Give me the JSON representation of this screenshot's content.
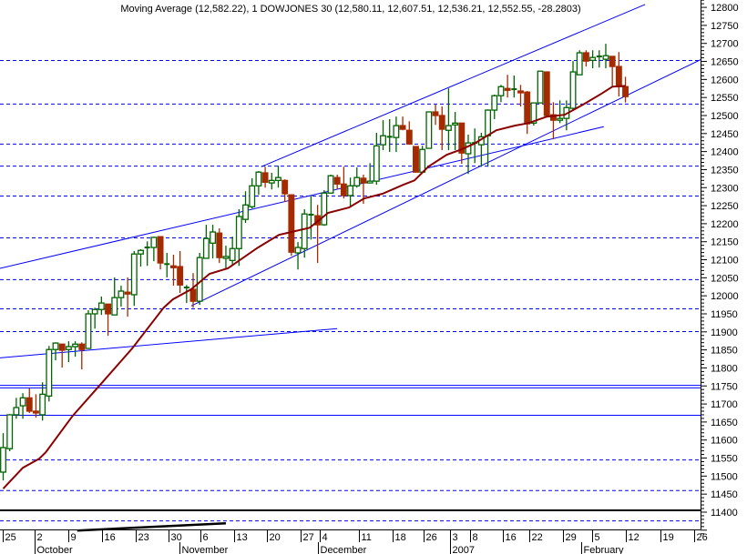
{
  "chart_data": {
    "type": "candlestick",
    "title": "Moving Average (12,582.22), 1 DOWJONES 30 (12,580.11, 12,607.51, 12,536.21, 12,552.55, -28.2803)",
    "ylim": [
      11336,
      12820
    ],
    "y_ticks": [
      11400,
      11450,
      11500,
      11550,
      11600,
      11650,
      11700,
      11750,
      11800,
      11850,
      11900,
      11950,
      12000,
      12050,
      12100,
      12150,
      12200,
      12250,
      12300,
      12350,
      12400,
      12450,
      12500,
      12550,
      12600,
      12650,
      12700,
      12750,
      12800
    ],
    "x_ticks": [
      {
        "label": "25",
        "pos": -0.1
      },
      {
        "label": "2",
        "pos": 4.8
      },
      {
        "label": "9",
        "pos": 10
      },
      {
        "label": "16",
        "pos": 15.1
      },
      {
        "label": "23",
        "pos": 20.2
      },
      {
        "label": "30",
        "pos": 25.2
      },
      {
        "label": "6",
        "pos": 30.1
      },
      {
        "label": "13",
        "pos": 35.3
      },
      {
        "label": "20",
        "pos": 40.2
      },
      {
        "label": "27",
        "pos": 45.4
      },
      {
        "label": "4",
        "pos": 48.3
      },
      {
        "label": "11",
        "pos": 54.3
      },
      {
        "label": "18",
        "pos": 59.5
      },
      {
        "label": "26",
        "pos": 64.2
      },
      {
        "label": "3",
        "pos": 68.2
      },
      {
        "label": "8",
        "pos": 71.3
      },
      {
        "label": "16",
        "pos": 76.3
      },
      {
        "label": "22",
        "pos": 80.3
      },
      {
        "label": "29",
        "pos": 85.5
      },
      {
        "label": "5",
        "pos": 89.9
      },
      {
        "label": "12",
        "pos": 95
      },
      {
        "label": "19",
        "pos": 100.3
      },
      {
        "label": "26",
        "pos": 105.5
      }
    ],
    "months": [
      {
        "label": "October",
        "pos": 4.8
      },
      {
        "label": "November",
        "pos": 26.9
      },
      {
        "label": "December",
        "pos": 48
      },
      {
        "label": "2007",
        "pos": 68.2
      },
      {
        "label": "February",
        "pos": 88.3
      }
    ],
    "candles": [
      [
        11511,
        11619,
        11488,
        11579
      ],
      [
        11576,
        11672,
        11569,
        11670
      ],
      [
        11670,
        11717,
        11659,
        11690
      ],
      [
        11695,
        11730,
        11659,
        11717
      ],
      [
        11717,
        11743,
        11675,
        11680
      ],
      [
        11680,
        11727,
        11662,
        11675
      ],
      [
        11670,
        11760,
        11654,
        11727
      ],
      [
        11722,
        11861,
        11707,
        11851
      ],
      [
        11851,
        11871,
        11821,
        11869
      ],
      [
        11866,
        11866,
        11801,
        11849
      ],
      [
        11851,
        11874,
        11816,
        11859
      ],
      [
        11859,
        11874,
        11831,
        11866
      ],
      [
        11866,
        11871,
        11796,
        11851
      ],
      [
        11854,
        11960,
        11854,
        11950
      ],
      [
        11950,
        11967,
        11909,
        11962
      ],
      [
        11962,
        11998,
        11947,
        11980
      ],
      [
        11977,
        11977,
        11889,
        11950
      ],
      [
        11947,
        12051,
        11947,
        11995
      ],
      [
        11995,
        12028,
        11970,
        12013
      ],
      [
        12010,
        12051,
        11942,
        12005
      ],
      [
        12003,
        12124,
        11972,
        12116
      ],
      [
        12116,
        12129,
        12081,
        12126
      ],
      [
        12131,
        12151,
        12083,
        12134
      ],
      [
        12134,
        12164,
        12096,
        12162
      ],
      [
        12164,
        12164,
        12073,
        12091
      ],
      [
        12088,
        12119,
        12051,
        12088
      ],
      [
        12083,
        12114,
        12028,
        12078
      ],
      [
        12081,
        12124,
        12008,
        12030
      ],
      [
        12023,
        12030,
        11980,
        12023
      ],
      [
        12018,
        12063,
        11967,
        11985
      ],
      [
        11985,
        12119,
        11975,
        12106
      ],
      [
        12104,
        12197,
        12104,
        12159
      ],
      [
        12146,
        12197,
        12104,
        12177
      ],
      [
        12174,
        12187,
        12091,
        12106
      ],
      [
        12104,
        12139,
        12073,
        12109
      ],
      [
        12098,
        12164,
        12086,
        12131
      ],
      [
        12131,
        12240,
        12083,
        12220
      ],
      [
        12212,
        12290,
        12202,
        12252
      ],
      [
        12247,
        12326,
        12242,
        12305
      ],
      [
        12305,
        12346,
        12280,
        12343
      ],
      [
        12341,
        12358,
        12300,
        12315
      ],
      [
        12313,
        12341,
        12295,
        12320
      ],
      [
        12320,
        12361,
        12300,
        12328
      ],
      [
        12320,
        12323,
        12260,
        12283
      ],
      [
        12280,
        12280,
        12111,
        12121
      ],
      [
        12119,
        12149,
        12073,
        12134
      ],
      [
        12131,
        12240,
        12106,
        12227
      ],
      [
        12225,
        12278,
        12156,
        12225
      ],
      [
        12222,
        12252,
        12091,
        12197
      ],
      [
        12197,
        12293,
        12194,
        12285
      ],
      [
        12285,
        12336,
        12283,
        12333
      ],
      [
        12328,
        12336,
        12295,
        12310
      ],
      [
        12310,
        12358,
        12270,
        12278
      ],
      [
        12278,
        12328,
        12245,
        12305
      ],
      [
        12305,
        12356,
        12300,
        12328
      ],
      [
        12326,
        12336,
        12255,
        12313
      ],
      [
        12313,
        12368,
        12313,
        12318
      ],
      [
        12318,
        12452,
        12308,
        12416
      ],
      [
        12419,
        12487,
        12404,
        12444
      ],
      [
        12441,
        12490,
        12399,
        12441
      ],
      [
        12439,
        12497,
        12399,
        12472
      ],
      [
        12472,
        12497,
        12459,
        12462
      ],
      [
        12459,
        12484,
        12419,
        12421
      ],
      [
        12414,
        12414,
        12343,
        12343
      ],
      [
        12343,
        12416,
        12341,
        12406
      ],
      [
        12409,
        12510,
        12409,
        12510
      ],
      [
        12510,
        12530,
        12474,
        12500
      ],
      [
        12500,
        12525,
        12404,
        12462
      ],
      [
        12459,
        12575,
        12404,
        12472
      ],
      [
        12474,
        12510,
        12404,
        12479
      ],
      [
        12479,
        12479,
        12366,
        12396
      ],
      [
        12394,
        12447,
        12338,
        12424
      ],
      [
        12424,
        12464,
        12368,
        12424
      ],
      [
        12419,
        12452,
        12358,
        12441
      ],
      [
        12444,
        12517,
        12358,
        12515
      ],
      [
        12515,
        12558,
        12490,
        12555
      ],
      [
        12555,
        12585,
        12537,
        12580
      ],
      [
        12575,
        12613,
        12550,
        12570
      ],
      [
        12573,
        12611,
        12550,
        12573
      ],
      [
        12568,
        12585,
        12525,
        12563
      ],
      [
        12565,
        12568,
        12449,
        12477
      ],
      [
        12479,
        12535,
        12472,
        12535
      ],
      [
        12535,
        12623,
        12535,
        12623
      ],
      [
        12621,
        12621,
        12500,
        12500
      ],
      [
        12502,
        12537,
        12434,
        12487
      ],
      [
        12487,
        12542,
        12479,
        12492
      ],
      [
        12492,
        12542,
        12459,
        12522
      ],
      [
        12520,
        12651,
        12515,
        12621
      ],
      [
        12613,
        12681,
        12613,
        12674
      ],
      [
        12674,
        12681,
        12636,
        12651
      ],
      [
        12653,
        12681,
        12631,
        12661
      ],
      [
        12661,
        12681,
        12633,
        12664
      ],
      [
        12656,
        12699,
        12631,
        12666
      ],
      [
        12664,
        12664,
        12580,
        12636
      ],
      [
        12636,
        12676,
        12553,
        12580
      ],
      [
        12580.11,
        12607.51,
        12536.21,
        12552.55
      ]
    ],
    "moving_average": {
      "name": "Moving Average",
      "last_value": 12582.22,
      "points": [
        [
          0,
          11465
        ],
        [
          3,
          11523
        ],
        [
          5.5,
          11548
        ],
        [
          6.5,
          11566
        ],
        [
          10.6,
          11667
        ],
        [
          14.8,
          11753
        ],
        [
          19.7,
          11854
        ],
        [
          24.5,
          11967
        ],
        [
          25.9,
          11990
        ],
        [
          28.7,
          12018
        ],
        [
          31.5,
          12061
        ],
        [
          34.3,
          12076
        ],
        [
          38.9,
          12134
        ],
        [
          42.1,
          12169
        ],
        [
          44,
          12177
        ],
        [
          46.8,
          12189
        ],
        [
          49.6,
          12230
        ],
        [
          52.8,
          12245
        ],
        [
          55.1,
          12270
        ],
        [
          57.9,
          12283
        ],
        [
          61.1,
          12308
        ],
        [
          62.8,
          12320
        ],
        [
          64.9,
          12358
        ],
        [
          67.7,
          12391
        ],
        [
          69.7,
          12404
        ],
        [
          71.8,
          12421
        ],
        [
          75.3,
          12459
        ],
        [
          78.1,
          12472
        ],
        [
          80.2,
          12479
        ],
        [
          83,
          12497
        ],
        [
          85.7,
          12502
        ],
        [
          88.5,
          12530
        ],
        [
          91.3,
          12560
        ],
        [
          93,
          12580
        ],
        [
          95,
          12582.22
        ]
      ]
    },
    "horizontal_lines": {
      "dashed": [
        12654,
        12533,
        12422,
        12361,
        12278,
        12162,
        12046,
        11965,
        11902,
        11546,
        11461,
        11377
      ],
      "solid_blue": [
        11753,
        11746,
        11670
      ],
      "solid_black": [
        11405
      ]
    },
    "trend_lines": [
      {
        "name": "upper-channel",
        "from": [
          39.4,
          12358
        ],
        "to": [
          98,
          12808
        ],
        "color": "#0000ff"
      },
      {
        "name": "lower-channel",
        "from": [
          28.7,
          11972
        ],
        "to": [
          106.6,
          12656
        ],
        "color": "#0000ff"
      },
      {
        "name": "mid-trend",
        "from": [
          -0.5,
          12076
        ],
        "to": [
          91.7,
          12469
        ],
        "color": "#0000ff"
      },
      {
        "name": "lower-trend",
        "from": [
          -0.5,
          11828
        ],
        "to": [
          51,
          11909
        ],
        "color": "#0000ff"
      },
      {
        "name": "bottom-indicator",
        "from": [
          11.3,
          11349
        ],
        "to": [
          34,
          11369
        ],
        "color": "#000000"
      }
    ],
    "colors": {
      "up": "#006400",
      "down": "#a52a00",
      "ma": "#8b0000",
      "lines": "#0000ff"
    }
  }
}
